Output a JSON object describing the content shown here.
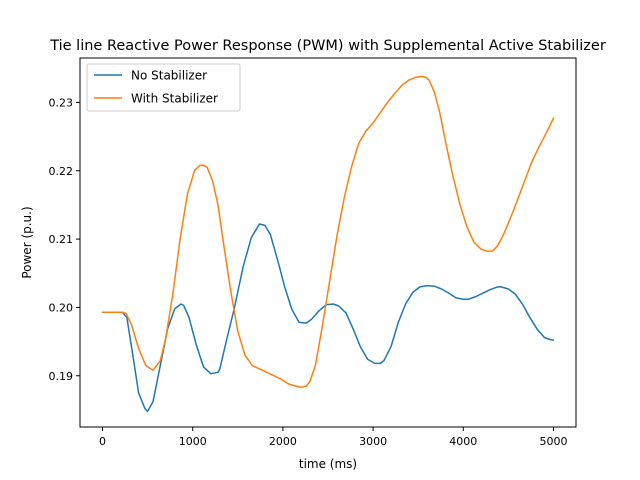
{
  "chart_data": {
    "type": "line",
    "title": "Tie line Reactive Power Response (PWM) with Supplemental Active Stabilizer",
    "xlabel": "time (ms)",
    "ylabel": "Power (p.u.)",
    "xlim": [
      -250,
      5250
    ],
    "ylim": [
      0.1825,
      0.2365
    ],
    "xticks": [
      0,
      1000,
      2000,
      3000,
      4000,
      5000
    ],
    "xtick_labels": [
      "0",
      "1000",
      "2000",
      "3000",
      "4000",
      "5000"
    ],
    "yticks": [
      0.19,
      0.2,
      0.21,
      0.22,
      0.23
    ],
    "ytick_labels": [
      "0.19",
      "0.20",
      "0.21",
      "0.22",
      "0.23"
    ],
    "grid": false,
    "legend": "top-left",
    "series": [
      {
        "name": "No Stabilizer",
        "color": "#1f77b4",
        "x": [
          0,
          220,
          270,
          330,
          400,
          470,
          500,
          560,
          640,
          720,
          800,
          870,
          900,
          960,
          1040,
          1120,
          1200,
          1280,
          1300,
          1380,
          1460,
          1560,
          1650,
          1740,
          1800,
          1860,
          1940,
          2020,
          2100,
          2180,
          2260,
          2320,
          2400,
          2480,
          2560,
          2620,
          2700,
          2780,
          2860,
          2940,
          3020,
          3080,
          3120,
          3200,
          3280,
          3360,
          3440,
          3520,
          3600,
          3680,
          3760,
          3840,
          3920,
          4000,
          4060,
          4140,
          4220,
          4300,
          4380,
          4420,
          4500,
          4580,
          4660,
          4740,
          4820,
          4900,
          4960,
          5000
        ],
        "y": [
          0.1993,
          0.1993,
          0.1985,
          0.1935,
          0.1875,
          0.1852,
          0.1848,
          0.1862,
          0.1915,
          0.1968,
          0.1998,
          0.2005,
          0.2003,
          0.1985,
          0.1945,
          0.1913,
          0.1903,
          0.1905,
          0.191,
          0.1955,
          0.1998,
          0.206,
          0.2102,
          0.2122,
          0.212,
          0.2107,
          0.207,
          0.203,
          0.1997,
          0.1978,
          0.1977,
          0.1983,
          0.1995,
          0.2004,
          0.2005,
          0.2002,
          0.1992,
          0.1968,
          0.1942,
          0.1924,
          0.1918,
          0.1918,
          0.1922,
          0.1943,
          0.1978,
          0.2005,
          0.2022,
          0.203,
          0.2032,
          0.2031,
          0.2027,
          0.2021,
          0.2014,
          0.2012,
          0.2012,
          0.2016,
          0.2021,
          0.2026,
          0.203,
          0.203,
          0.2027,
          0.2019,
          0.2004,
          0.1985,
          0.1968,
          0.1956,
          0.1953,
          0.1952
        ]
      },
      {
        "name": "With Stabilizer",
        "color": "#ff7f0e",
        "x": [
          0,
          220,
          260,
          320,
          400,
          480,
          560,
          640,
          700,
          780,
          860,
          940,
          1020,
          1080,
          1120,
          1160,
          1220,
          1280,
          1340,
          1420,
          1500,
          1580,
          1660,
          1740,
          1820,
          1900,
          1980,
          2060,
          2140,
          2200,
          2260,
          2300,
          2360,
          2440,
          2520,
          2600,
          2680,
          2760,
          2840,
          2920,
          3000,
          3080,
          3160,
          3240,
          3320,
          3400,
          3480,
          3540,
          3580,
          3620,
          3680,
          3740,
          3800,
          3880,
          3960,
          4040,
          4120,
          4200,
          4280,
          4330,
          4380,
          4440,
          4520,
          4600,
          4680,
          4760,
          4840,
          4920,
          5000
        ],
        "y": [
          0.1993,
          0.1993,
          0.1991,
          0.1975,
          0.194,
          0.1915,
          0.1908,
          0.1922,
          0.1955,
          0.202,
          0.21,
          0.2165,
          0.22,
          0.2208,
          0.2208,
          0.2205,
          0.2185,
          0.215,
          0.2095,
          0.2025,
          0.1965,
          0.193,
          0.1915,
          0.191,
          0.1905,
          0.19,
          0.1895,
          0.1888,
          0.1885,
          0.1883,
          0.1885,
          0.1892,
          0.1915,
          0.1975,
          0.204,
          0.2105,
          0.216,
          0.2205,
          0.224,
          0.2258,
          0.227,
          0.2285,
          0.23,
          0.2313,
          0.2325,
          0.2333,
          0.2337,
          0.2338,
          0.2337,
          0.2333,
          0.2315,
          0.2285,
          0.2245,
          0.2195,
          0.2152,
          0.2118,
          0.2095,
          0.2085,
          0.2082,
          0.2083,
          0.209,
          0.2105,
          0.213,
          0.2157,
          0.2185,
          0.2213,
          0.2235,
          0.2255,
          0.2277
        ]
      }
    ]
  }
}
